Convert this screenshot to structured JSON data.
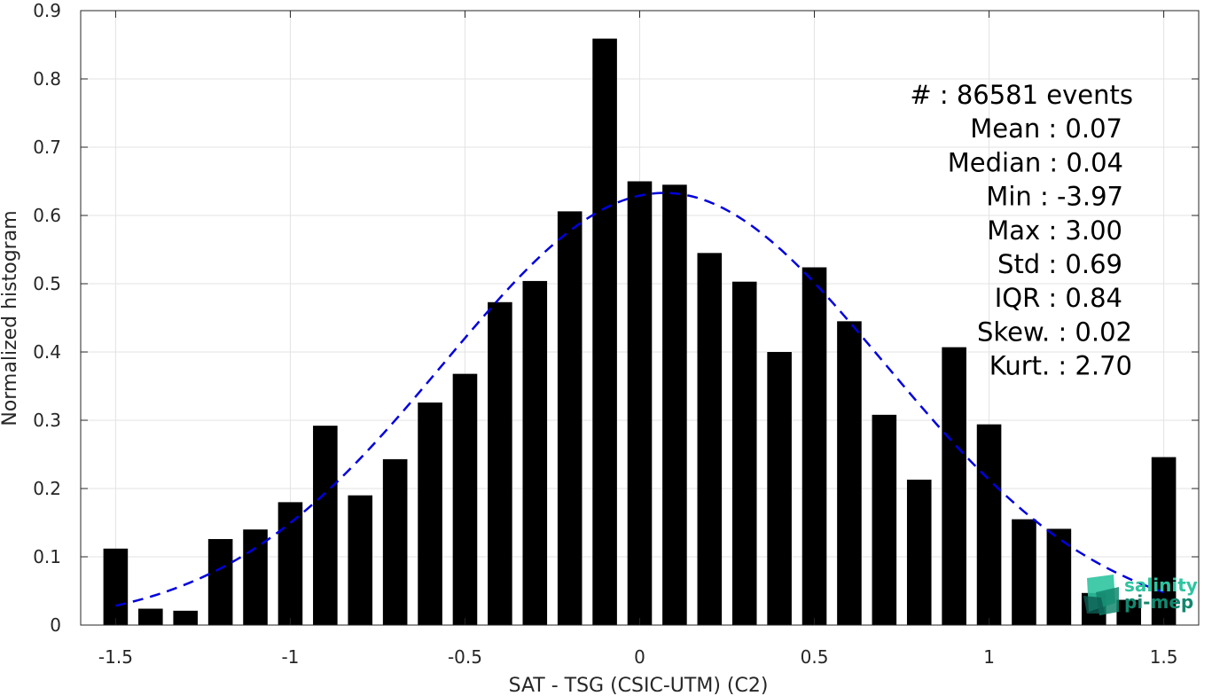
{
  "chart_data": {
    "type": "bar",
    "xlabel": "SAT - TSG (CSIC-UTM) (C2)",
    "ylabel": "Normalized histogram",
    "xlim": [
      -1.6,
      1.6
    ],
    "ylim": [
      0,
      0.9
    ],
    "grid": true,
    "x_ticks": [
      "-1.5",
      "-1",
      "-0.5",
      "0",
      "0.5",
      "1",
      "1.5"
    ],
    "y_ticks": [
      "0",
      "0.1",
      "0.2",
      "0.3",
      "0.4",
      "0.5",
      "0.6",
      "0.7",
      "0.8",
      "0.9"
    ],
    "bin_width": 0.1,
    "bar_width_fraction": 0.7,
    "bars": {
      "x": [
        -1.5,
        -1.4,
        -1.3,
        -1.2,
        -1.1,
        -1.0,
        -0.9,
        -0.8,
        -0.7,
        -0.6,
        -0.5,
        -0.4,
        -0.3,
        -0.2,
        -0.1,
        0.0,
        0.1,
        0.2,
        0.3,
        0.4,
        0.5,
        0.6,
        0.7,
        0.8,
        0.9,
        1.0,
        1.1,
        1.2,
        1.3,
        1.4,
        1.5
      ],
      "values": [
        0.112,
        0.024,
        0.021,
        0.126,
        0.14,
        0.18,
        0.292,
        0.19,
        0.243,
        0.326,
        0.368,
        0.473,
        0.504,
        0.606,
        0.859,
        0.65,
        0.645,
        0.545,
        0.503,
        0.4,
        0.524,
        0.445,
        0.308,
        0.213,
        0.407,
        0.294,
        0.155,
        0.141,
        0.047,
        0.037,
        0.246
      ],
      "color": "#000000"
    },
    "fit_curve": {
      "style": "dashed",
      "color": "#0000dd",
      "mean": 0.07,
      "std": 0.63,
      "peak": 0.633,
      "x_range": [
        -1.5,
        1.5
      ]
    },
    "annotations": [
      "#  : 86581 events",
      "Mean : 0.07",
      "Median : 0.04",
      "Min : -3.97",
      "Max : 3.00",
      "Std : 0.69",
      "IQR : 0.84",
      "Skew. : 0.02",
      "Kurt. : 2.70"
    ]
  },
  "logo": {
    "line1": "salinity",
    "line2": "pi-mep",
    "colors": [
      "#2ec4a0",
      "#13876e",
      "#0b5e52"
    ]
  }
}
